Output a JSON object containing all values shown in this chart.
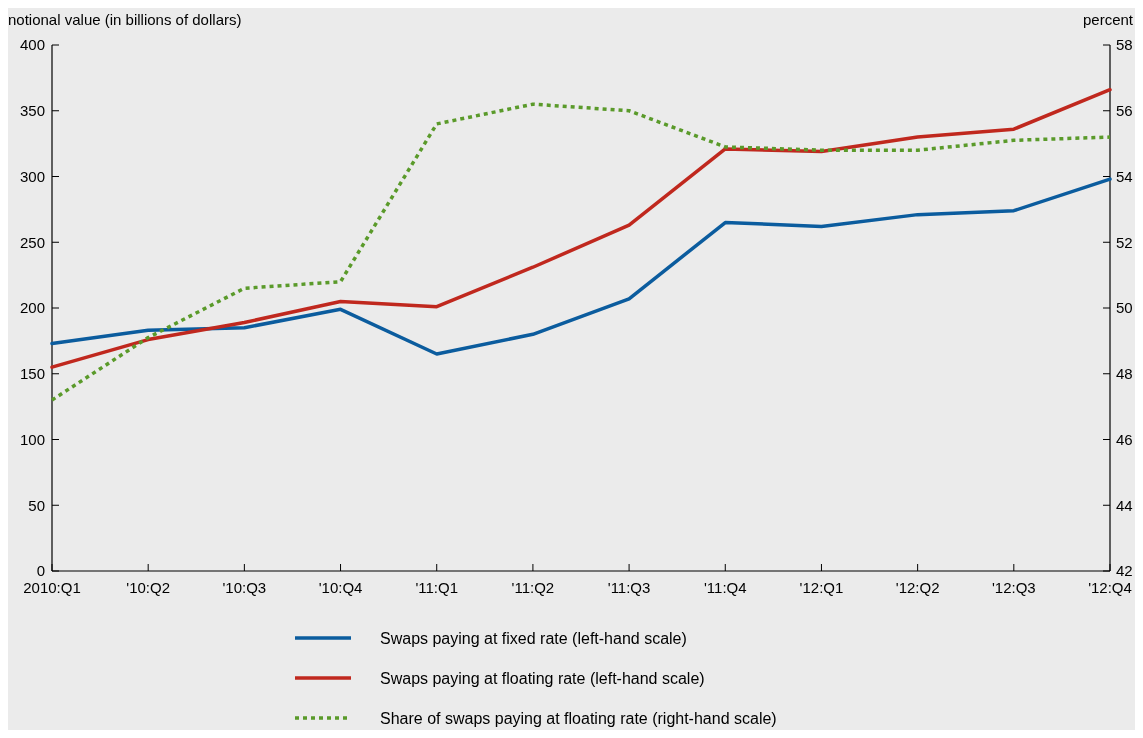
{
  "chart_data": {
    "type": "line",
    "ylabel": "notional value (in billions of dollars)",
    "y2label": "percent",
    "categories": [
      "2010:Q1",
      "'10:Q2",
      "'10:Q3",
      "'10:Q4",
      "'11:Q1",
      "'11:Q2",
      "'11:Q3",
      "'11:Q4",
      "'12:Q1",
      "'12:Q2",
      "'12:Q3",
      "'12:Q4"
    ],
    "series": [
      {
        "name": "Swaps paying at fixed rate (left-hand scale)",
        "color": "#0b5c9e",
        "line_style": "solid",
        "values": [
          173,
          183,
          185,
          199,
          165,
          180,
          207,
          265,
          262,
          271,
          274,
          298
        ]
      },
      {
        "name": "Swaps paying at floating rate (left-hand scale)",
        "color": "#c0281e",
        "line_style": "solid",
        "values": [
          155,
          176,
          189,
          205,
          201,
          231,
          263,
          321,
          319,
          330,
          336,
          366
        ]
      },
      {
        "name": "Share of swaps paying at floating rate (right-hand scale)",
        "color": "#5a9a2a",
        "line_style": "dotted",
        "axis": "y2",
        "values": [
          47.2,
          49.1,
          50.6,
          50.8,
          55.6,
          56.2,
          56.0,
          54.9,
          54.8,
          54.8,
          55.1,
          55.2
        ]
      }
    ],
    "ylim": [
      0,
      400
    ],
    "yticks": [
      0,
      50,
      100,
      150,
      200,
      250,
      300,
      350,
      400
    ],
    "y2lim": [
      42,
      58
    ],
    "y2ticks": [
      42,
      44,
      46,
      48,
      50,
      52,
      54,
      56,
      58
    ],
    "grid": false,
    "legend": "bottom",
    "marker": "none"
  }
}
